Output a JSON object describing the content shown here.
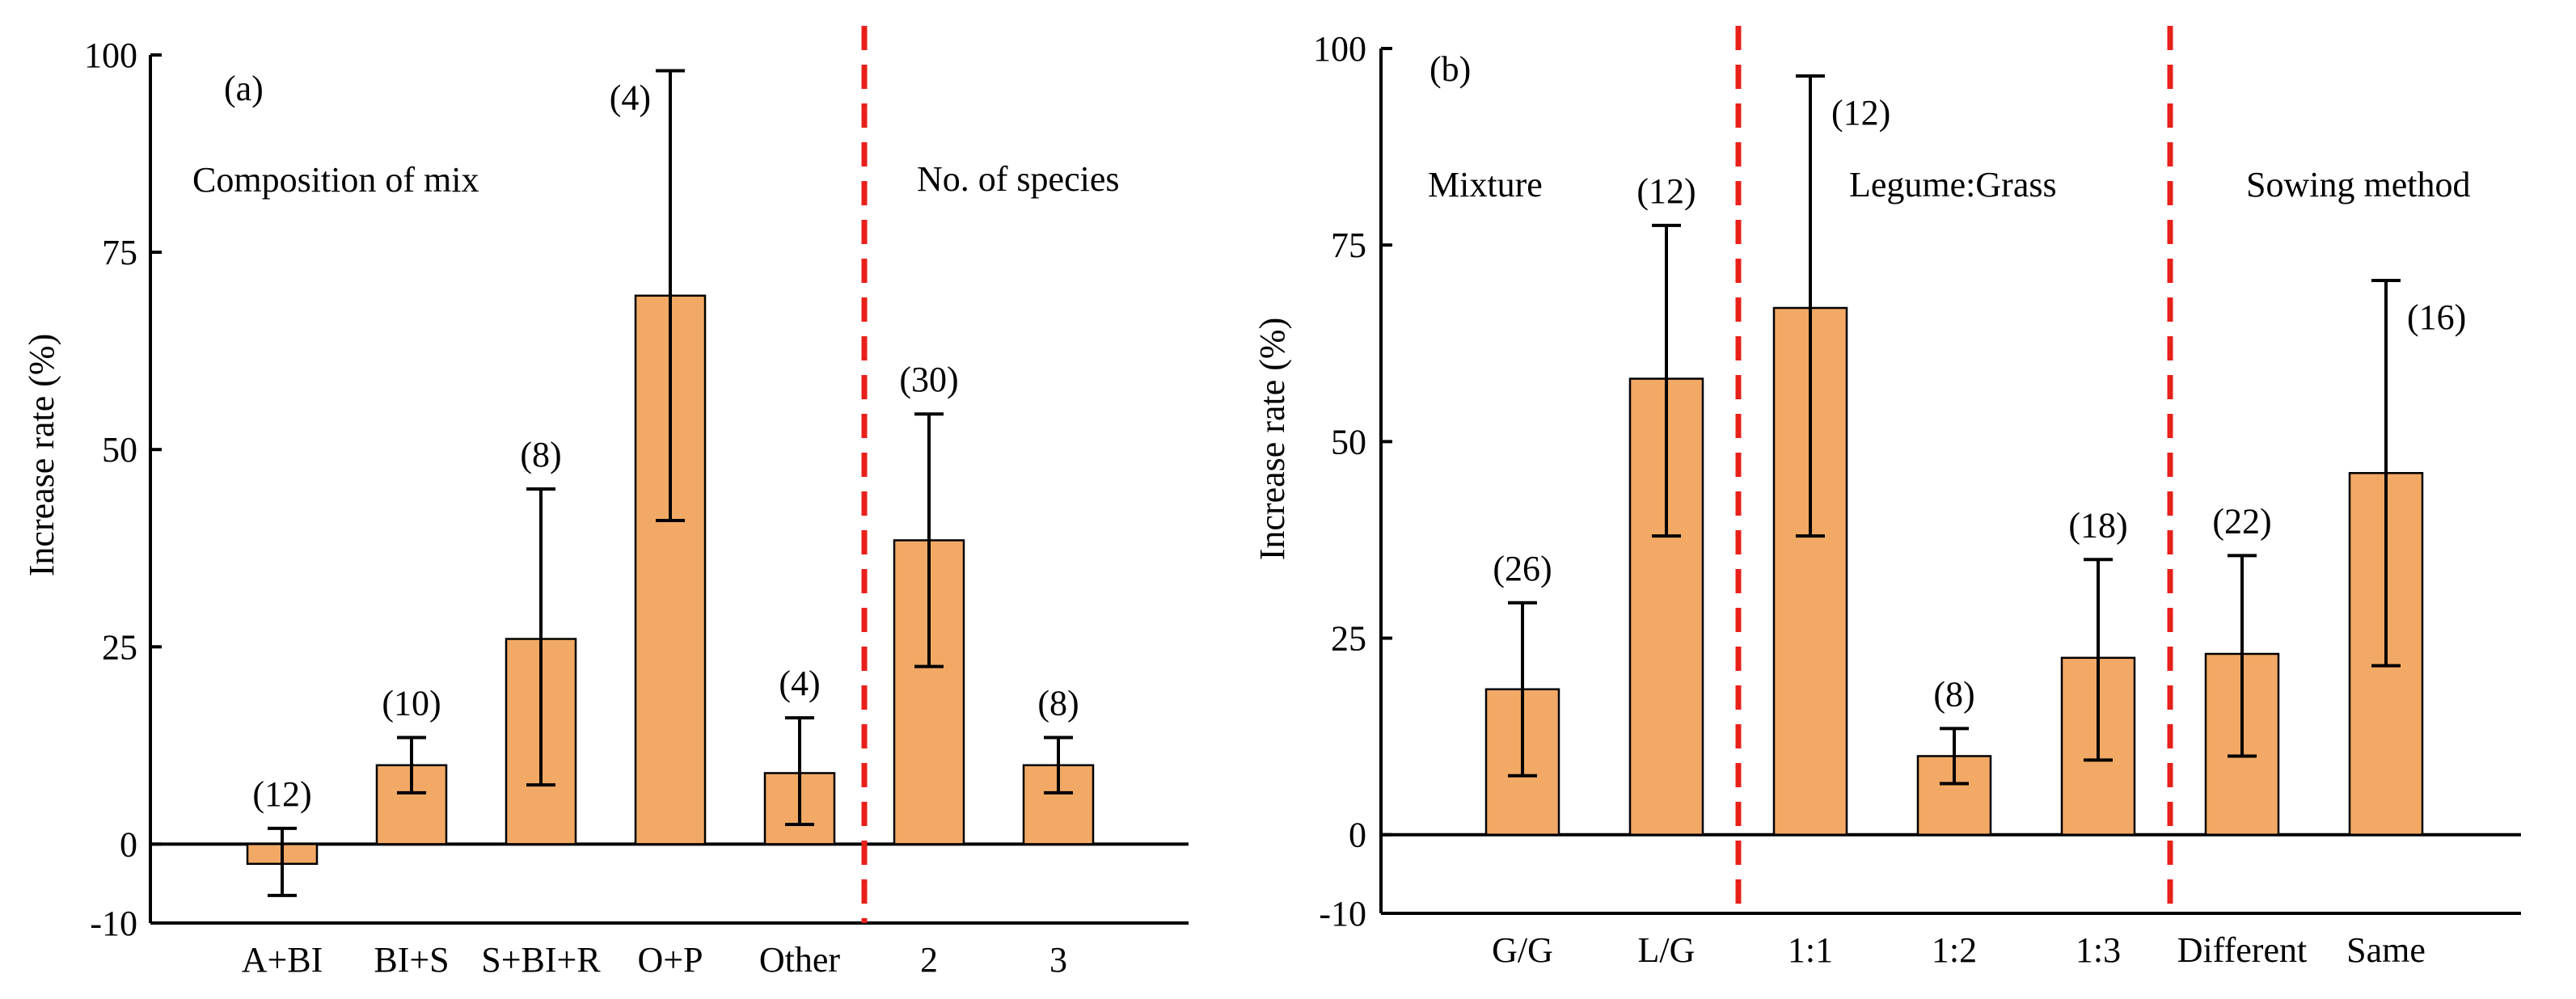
{
  "colors": {
    "bar_fill": "#f2a965",
    "bar_stroke": "#000000",
    "divider": "#e8201a",
    "axis": "#000000"
  },
  "chart_data": [
    {
      "type": "bar",
      "panel_label": "(a)",
      "ylabel": "Increase rate (%)",
      "ylim": [
        -10,
        100
      ],
      "yticks": [
        -10,
        0,
        25,
        50,
        75,
        100
      ],
      "grid": false,
      "group_labels": [
        "Composition of mix",
        "No. of species"
      ],
      "categories": [
        "A+BI",
        "BI+S",
        "S+BI+R",
        "O+P",
        "Other",
        "2",
        "3"
      ],
      "values": [
        -2.5,
        10,
        26,
        69.5,
        9,
        38.5,
        10
      ],
      "error_low": [
        -6.5,
        6.5,
        7.5,
        41,
        2.5,
        22.5,
        6.5
      ],
      "error_high": [
        2,
        13.5,
        45,
        98,
        16,
        54.5,
        13.5
      ],
      "counts": [
        "(12)",
        "(10)",
        "(8)",
        "(4)",
        "(4)",
        "(30)",
        "(8)"
      ],
      "dividers_after_index": [
        4
      ]
    },
    {
      "type": "bar",
      "panel_label": "(b)",
      "ylabel": "Increase rate (%)",
      "ylim": [
        -10,
        100
      ],
      "yticks": [
        -10,
        0,
        25,
        50,
        75,
        100
      ],
      "grid": false,
      "group_labels": [
        "Mixture",
        "Legume:Grass",
        "Sowing method"
      ],
      "categories": [
        "G/G",
        "L/G",
        "1:1",
        "1:2",
        "1:3",
        "Different",
        "Same"
      ],
      "values": [
        18.5,
        58,
        67,
        10,
        22.5,
        23,
        46
      ],
      "error_low": [
        7.5,
        38,
        38,
        6.5,
        9.5,
        10,
        21.5
      ],
      "error_high": [
        29.5,
        77.5,
        96.5,
        13.5,
        35,
        35.5,
        70.5
      ],
      "counts": [
        "(26)",
        "(12)",
        "(12)",
        "(8)",
        "(18)",
        "(22)",
        "(16)"
      ],
      "dividers_after_index": [
        1,
        4
      ]
    }
  ]
}
